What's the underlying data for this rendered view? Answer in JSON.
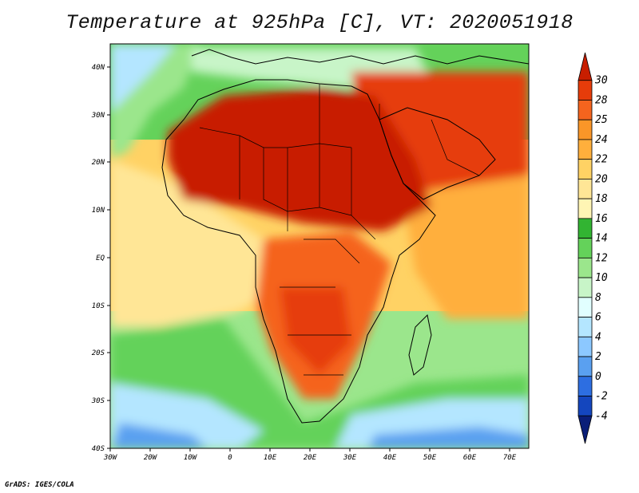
{
  "title": "Temperature at 925hPa [C], VT: 2020051918",
  "credit": "GrADS: IGES/COLA",
  "map": {
    "lat_labels": [
      "40N",
      "30N",
      "20N",
      "10N",
      "EQ",
      "10S",
      "20S",
      "30S",
      "40S"
    ],
    "lon_labels": [
      "30W",
      "20W",
      "10W",
      "0",
      "10E",
      "20E",
      "30E",
      "40E",
      "50E",
      "60E",
      "70E"
    ]
  },
  "colorbar": {
    "labels": [
      "30",
      "28",
      "25",
      "24",
      "22",
      "20",
      "18",
      "16",
      "14",
      "12",
      "10",
      "8",
      "6",
      "4",
      "2",
      "0",
      "-2",
      "-4"
    ],
    "colors": [
      "#c81e00",
      "#e63c0a",
      "#f5641e",
      "#fa9628",
      "#ffaf3c",
      "#ffd264",
      "#ffe696",
      "#fff5b4",
      "#32b432",
      "#64d25a",
      "#9be68c",
      "#c8f5c8",
      "#e1ffff",
      "#b4e6ff",
      "#8cc8ff",
      "#5aa0f0",
      "#2d6ee1",
      "#1446be",
      "#0a1e78"
    ]
  }
}
